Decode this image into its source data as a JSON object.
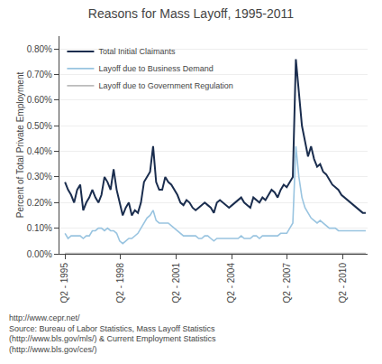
{
  "chart_data": {
    "type": "line",
    "title": "Reasons for Mass Layoff, 1995-2011",
    "y_label": "Percent of Total Private Employment",
    "annotations": [
      "http://www.cepr.net/\nSource: Bureau of Labor Statistics, Mass Layoff Statistics\n(http://www.bls.gov/mls/) & Current Employment Statistics\n(http://www.bls.gov/ces/)"
    ],
    "x": [
      1995.25,
      1995.4141,
      1995.5783,
      1995.7424,
      1995.9066,
      1996.0707,
      1996.2348,
      1996.399,
      1996.5631,
      1996.7273,
      1996.8914,
      1997.0556,
      1997.2197,
      1997.3838,
      1997.548,
      1997.7121,
      1997.8763,
      1998.0404,
      1998.2045,
      1998.3687,
      1998.5328,
      1998.697,
      1998.8611,
      1999.0253,
      1999.1894,
      1999.3535,
      1999.5177,
      1999.6818,
      1999.846,
      2000.0101,
      2000.1742,
      2000.3384,
      2000.5025,
      2000.6667,
      2000.8308,
      2000.9949,
      2001.1591,
      2001.3232,
      2001.4874,
      2001.6515,
      2001.8157,
      2001.9798,
      2002.1439,
      2002.3081,
      2002.4722,
      2002.6364,
      2002.8005,
      2002.9646,
      2003.1288,
      2003.2929,
      2003.4571,
      2003.6212,
      2003.7854,
      2003.9495,
      2004.1136,
      2004.2778,
      2004.4419,
      2004.6061,
      2004.7702,
      2004.9343,
      2005.0985,
      2005.2626,
      2005.4268,
      2005.5909,
      2005.7551,
      2005.9192,
      2006.0833,
      2006.2475,
      2006.4116,
      2006.5758,
      2006.7399,
      2006.904,
      2007.0682,
      2007.2323,
      2007.3965,
      2007.5606,
      2007.7247,
      2007.8889,
      2008.053,
      2008.2172,
      2008.3813,
      2008.5455,
      2008.7096,
      2008.8737,
      2009.0379,
      2009.202,
      2009.3662,
      2009.5303,
      2009.6944,
      2009.8586,
      2010.0227,
      2010.1869,
      2010.351,
      2010.5152,
      2010.6793,
      2010.8434,
      2011.0076,
      2011.1717,
      2011.3359,
      2011.5
    ],
    "series": [
      {
        "name": "Total Initial Claimants",
        "color": "#1a2d4e",
        "values": [
          0.0028,
          0.0025,
          0.0023,
          0.002,
          0.0025,
          0.0027,
          0.0017,
          0.002,
          0.0022,
          0.0025,
          0.0022,
          0.002,
          0.0023,
          0.003,
          0.0028,
          0.0025,
          0.0033,
          0.0025,
          0.002,
          0.0015,
          0.0018,
          0.002,
          0.0015,
          0.0017,
          0.0016,
          0.002,
          0.0028,
          0.003,
          0.0032,
          0.0042,
          0.0028,
          0.0025,
          0.0025,
          0.003,
          0.0028,
          0.0027,
          0.0025,
          0.0023,
          0.002,
          0.0019,
          0.0021,
          0.002,
          0.0018,
          0.0017,
          0.0018,
          0.0019,
          0.002,
          0.0019,
          0.0018,
          0.0016,
          0.002,
          0.0021,
          0.002,
          0.0019,
          0.0018,
          0.0019,
          0.002,
          0.0021,
          0.0022,
          0.002,
          0.0019,
          0.0018,
          0.0022,
          0.0021,
          0.002,
          0.0022,
          0.0021,
          0.0023,
          0.0025,
          0.0024,
          0.0022,
          0.0025,
          0.0027,
          0.0026,
          0.0028,
          0.003,
          0.0076,
          0.0063,
          0.005,
          0.0044,
          0.0038,
          0.0042,
          0.0037,
          0.0034,
          0.0035,
          0.0032,
          0.0031,
          0.0029,
          0.0027,
          0.0026,
          0.0025,
          0.0023,
          0.0022,
          0.0021,
          0.002,
          0.0019,
          0.0018,
          0.0017,
          0.0016,
          0.0016
        ]
      },
      {
        "name": "Layoff due to Business Demand",
        "color": "#99c4e0",
        "values": [
          0.0008,
          0.0006,
          0.0007,
          0.0007,
          0.0007,
          0.0007,
          0.0006,
          0.0007,
          0.0007,
          0.0009,
          0.0009,
          0.001,
          0.001,
          0.0009,
          0.001,
          0.0009,
          0.0009,
          0.0008,
          0.0005,
          0.0004,
          0.0005,
          0.0006,
          0.0006,
          0.0007,
          0.0008,
          0.001,
          0.0012,
          0.0014,
          0.0015,
          0.0017,
          0.0013,
          0.0012,
          0.0012,
          0.0012,
          0.0012,
          0.0011,
          0.001,
          0.0009,
          0.0008,
          0.0007,
          0.0007,
          0.0007,
          0.0007,
          0.0007,
          0.0006,
          0.0006,
          0.0007,
          0.0007,
          0.0006,
          0.0005,
          0.0006,
          0.0006,
          0.0006,
          0.0006,
          0.0006,
          0.0006,
          0.0006,
          0.0006,
          0.0007,
          0.0006,
          0.0006,
          0.0006,
          0.0007,
          0.0007,
          0.0006,
          0.0007,
          0.0007,
          0.0007,
          0.0007,
          0.0007,
          0.0007,
          0.0008,
          0.0008,
          0.0008,
          0.001,
          0.0012,
          0.0042,
          0.003,
          0.0022,
          0.0018,
          0.0016,
          0.0014,
          0.0013,
          0.0012,
          0.0013,
          0.0012,
          0.0011,
          0.001,
          0.001,
          0.001,
          0.0009,
          0.0009,
          0.0009,
          0.0009,
          0.0009,
          0.0009,
          0.0009,
          0.0009,
          0.0009,
          0.0009
        ]
      },
      {
        "name": "Layoff due to Government Regulation",
        "color": "#bbbbbb",
        "values": [
          2e-05,
          2e-05,
          2e-05,
          2e-05,
          2e-05,
          2e-05,
          2e-05,
          2e-05,
          2e-05,
          2e-05,
          2e-05,
          2e-05,
          2e-05,
          2e-05,
          2e-05,
          2e-05,
          2e-05,
          2e-05,
          2e-05,
          2e-05,
          2e-05,
          2e-05,
          2e-05,
          2e-05,
          2e-05,
          2e-05,
          2e-05,
          2e-05,
          2e-05,
          2e-05,
          2e-05,
          2e-05,
          2e-05,
          2e-05,
          2e-05,
          2e-05,
          2e-05,
          2e-05,
          2e-05,
          2e-05,
          2e-05,
          2e-05,
          2e-05,
          2e-05,
          2e-05,
          2e-05,
          2e-05,
          2e-05,
          2e-05,
          2e-05,
          2e-05,
          2e-05,
          2e-05,
          2e-05,
          2e-05,
          2e-05,
          2e-05,
          2e-05,
          2e-05,
          2e-05,
          2e-05,
          2e-05,
          2e-05,
          2e-05,
          2e-05,
          2e-05,
          2e-05,
          2e-05,
          2e-05,
          2e-05,
          2e-05,
          2e-05,
          2e-05,
          2e-05,
          2e-05,
          2e-05,
          2e-05,
          2e-05,
          2e-05,
          2e-05,
          2e-05,
          2e-05,
          2e-05,
          2e-05,
          2e-05,
          2e-05,
          2e-05,
          2e-05,
          2e-05,
          2e-05,
          2e-05,
          2e-05,
          2e-05,
          2e-05,
          2e-05,
          2e-05,
          2e-05,
          2e-05,
          2e-05,
          2e-05
        ]
      }
    ],
    "xlim": [
      1994.95,
      2011.6
    ],
    "xticks": [
      {
        "value": 1995.25,
        "label": "Q2 - 1995"
      },
      {
        "value": 1998.25,
        "label": "Q2 - 1998"
      },
      {
        "value": 2001.25,
        "label": "Q2 - 2001"
      },
      {
        "value": 2004.25,
        "label": "Q2 - 2004"
      },
      {
        "value": 2007.25,
        "label": "Q2 - 2007"
      },
      {
        "value": 2010.25,
        "label": "Q2 - 2010"
      }
    ],
    "ylim": [
      0,
      0.0085
    ],
    "yticks": [
      {
        "value": 0.0,
        "label": "0.00%"
      },
      {
        "value": 0.001,
        "label": "0.10%"
      },
      {
        "value": 0.002,
        "label": "0.20%"
      },
      {
        "value": 0.003,
        "label": "0.30%"
      },
      {
        "value": 0.004,
        "label": "0.40%"
      },
      {
        "value": 0.005,
        "label": "0.50%"
      },
      {
        "value": 0.006,
        "label": "0.60%"
      },
      {
        "value": 0.007,
        "label": "0.70%"
      },
      {
        "value": 0.008,
        "label": "0.80%"
      }
    ],
    "grid": "y",
    "legend": "upper left"
  }
}
